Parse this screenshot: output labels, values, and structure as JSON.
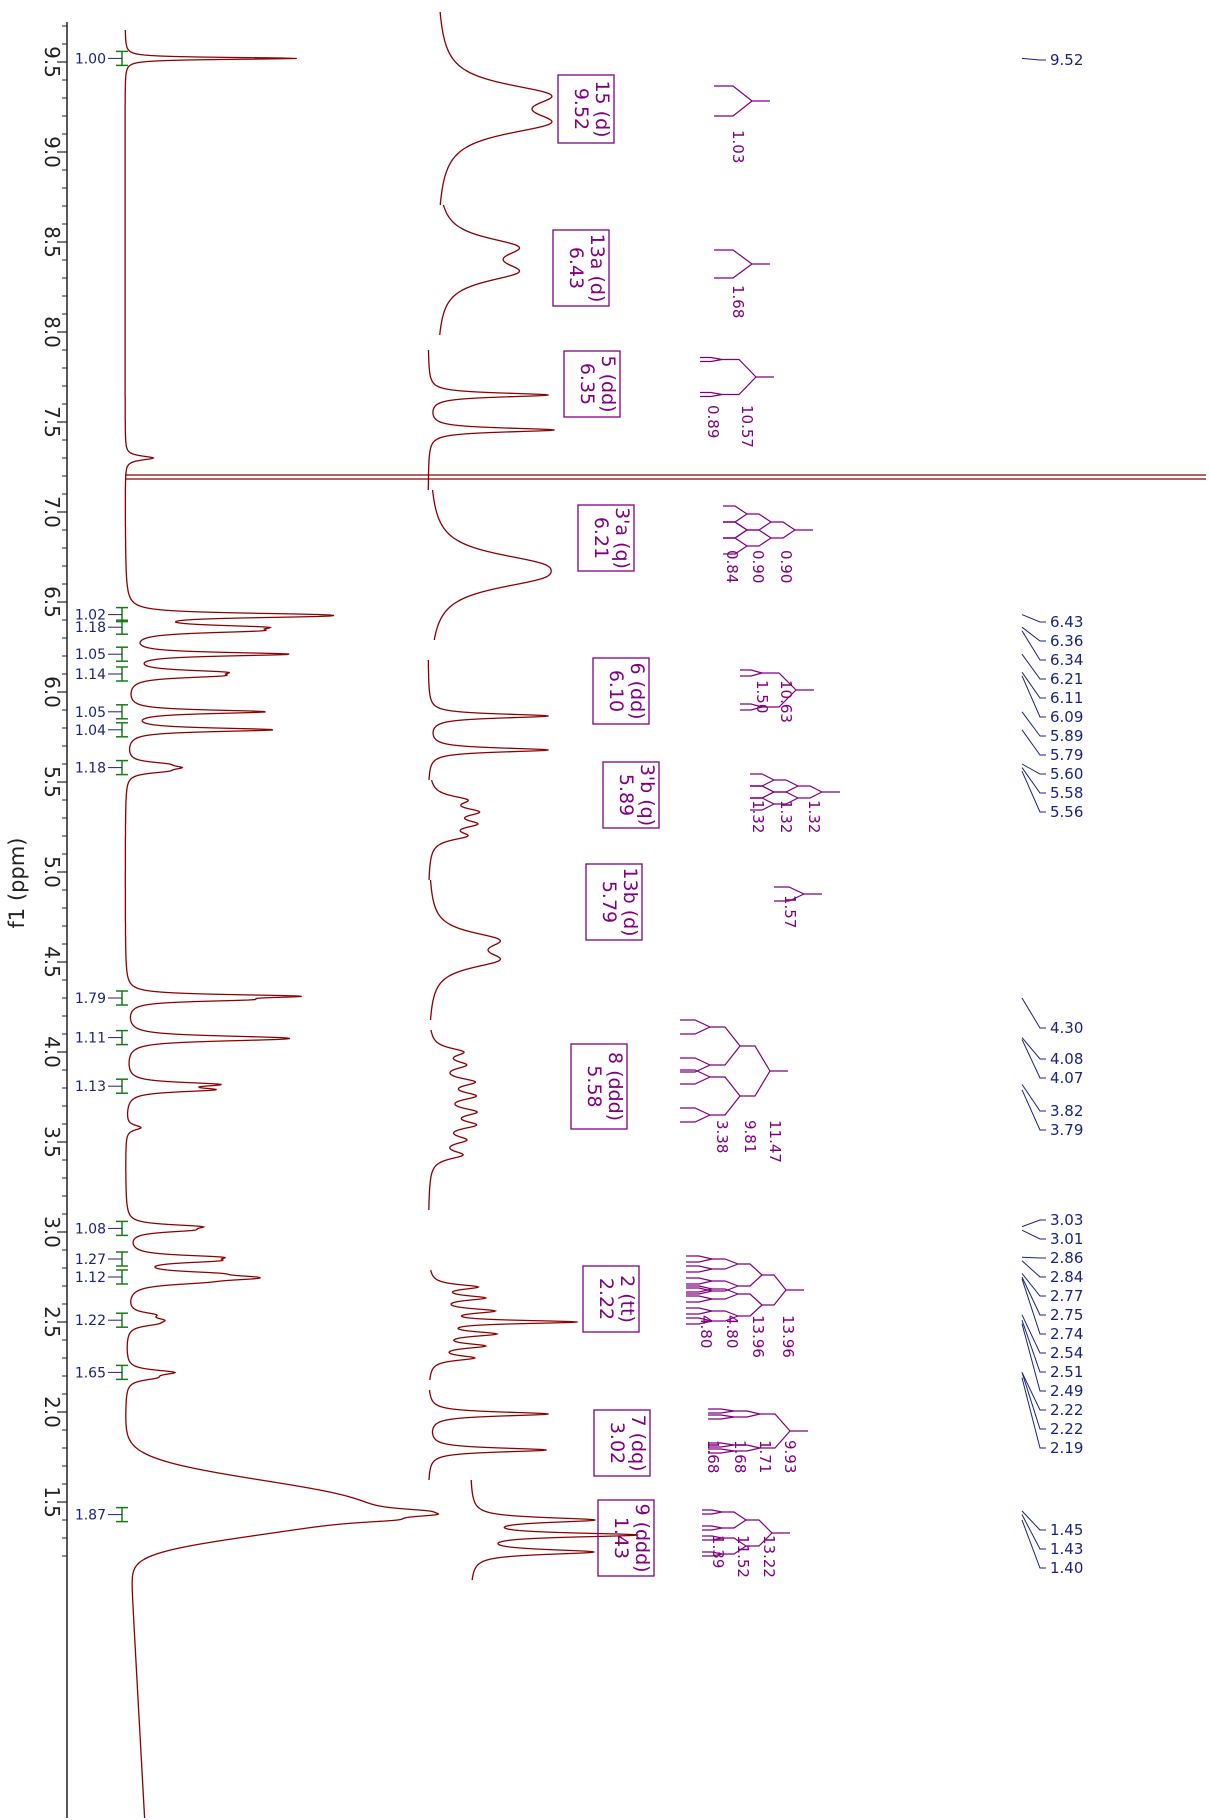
{
  "chart_data": {
    "type": "line",
    "title": "",
    "xlabel": "f1 (ppm)",
    "ylabel": "",
    "xlim": [
      9.72,
      1.2
    ],
    "x_reversed": true,
    "orientation": "rotated-90",
    "ticks": [
      "9.5",
      "9.0",
      "8.5",
      "8.0",
      "7.5",
      "7.0",
      "6.5",
      "6.0",
      "5.5",
      "5.0",
      "4.5",
      "4.0",
      "3.5",
      "3.0",
      "2.5",
      "2.0",
      "1.5"
    ],
    "peak_labels": [
      "9.52",
      "6.43",
      "6.36",
      "6.34",
      "6.21",
      "6.11",
      "6.09",
      "5.89",
      "5.79",
      "5.60",
      "5.58",
      "5.56",
      "4.30",
      "4.08",
      "4.07",
      "3.82",
      "3.79",
      "3.03",
      "3.01",
      "2.86",
      "2.84",
      "2.77",
      "2.75",
      "2.74",
      "2.54",
      "2.51",
      "2.49",
      "2.22",
      "2.22",
      "2.19",
      "1.45",
      "1.43",
      "1.40"
    ],
    "integrals": [
      {
        "ppm": 9.52,
        "value": "1.00"
      },
      {
        "ppm": 6.43,
        "value": "1.02"
      },
      {
        "ppm": 6.36,
        "value": "1.18"
      },
      {
        "ppm": 6.21,
        "value": "1.05"
      },
      {
        "ppm": 6.1,
        "value": "1.14"
      },
      {
        "ppm": 5.89,
        "value": "1.05"
      },
      {
        "ppm": 5.79,
        "value": "1.04"
      },
      {
        "ppm": 5.58,
        "value": "1.18"
      },
      {
        "ppm": 4.3,
        "value": "1.79"
      },
      {
        "ppm": 4.08,
        "value": "1.11"
      },
      {
        "ppm": 3.81,
        "value": "1.13"
      },
      {
        "ppm": 3.02,
        "value": "1.08"
      },
      {
        "ppm": 2.85,
        "value": "1.27"
      },
      {
        "ppm": 2.75,
        "value": "1.12"
      },
      {
        "ppm": 2.51,
        "value": "1.22"
      },
      {
        "ppm": 2.22,
        "value": "1.65"
      },
      {
        "ppm": 1.43,
        "value": "1.87"
      }
    ],
    "multiplets": [
      {
        "line1": "15 (d)",
        "line2": "9.52",
        "j": [
          "1.03"
        ]
      },
      {
        "line1": "13a (d)",
        "line2": "6.43",
        "j": [
          "1.68"
        ]
      },
      {
        "line1": "5 (dd)",
        "line2": "6.35",
        "j": [
          "10.57",
          "0.89"
        ]
      },
      {
        "line1": "3'a (q)",
        "line2": "6.21",
        "j": [
          "0.90",
          "0.90",
          "0.84"
        ]
      },
      {
        "line1": "6 (dd)",
        "line2": "6.10",
        "j": [
          "10.63",
          "1.50"
        ]
      },
      {
        "line1": "3'b (q)",
        "line2": "5.89",
        "j": [
          "1.32",
          "1.32",
          "1.32"
        ]
      },
      {
        "line1": "13b (d)",
        "line2": "5.79",
        "j": [
          "1.57"
        ]
      },
      {
        "line1": "8 (ddd)",
        "line2": "5.58",
        "j": [
          "11.47",
          "9.81",
          "3.38"
        ]
      },
      {
        "line1": "2 (tt)",
        "line2": "2.22",
        "j": [
          "13.96",
          "13.96",
          "4.80",
          "4.80"
        ]
      },
      {
        "line1": "7 (dq)",
        "line2": "3.02",
        "j": [
          "9.93",
          "1.71",
          "1.68",
          "1.68"
        ]
      },
      {
        "line1": "9 (ddd)",
        "line2": "1.43",
        "j": [
          "13.22",
          "11.52",
          "1.39"
        ]
      }
    ],
    "colors": {
      "spectrum": "#8b0000",
      "integral": "#1a7a1a",
      "integral_label": "#1a237e",
      "peak_label": "#1a237e",
      "multiplet": "#800080",
      "axis": "#222222"
    }
  }
}
